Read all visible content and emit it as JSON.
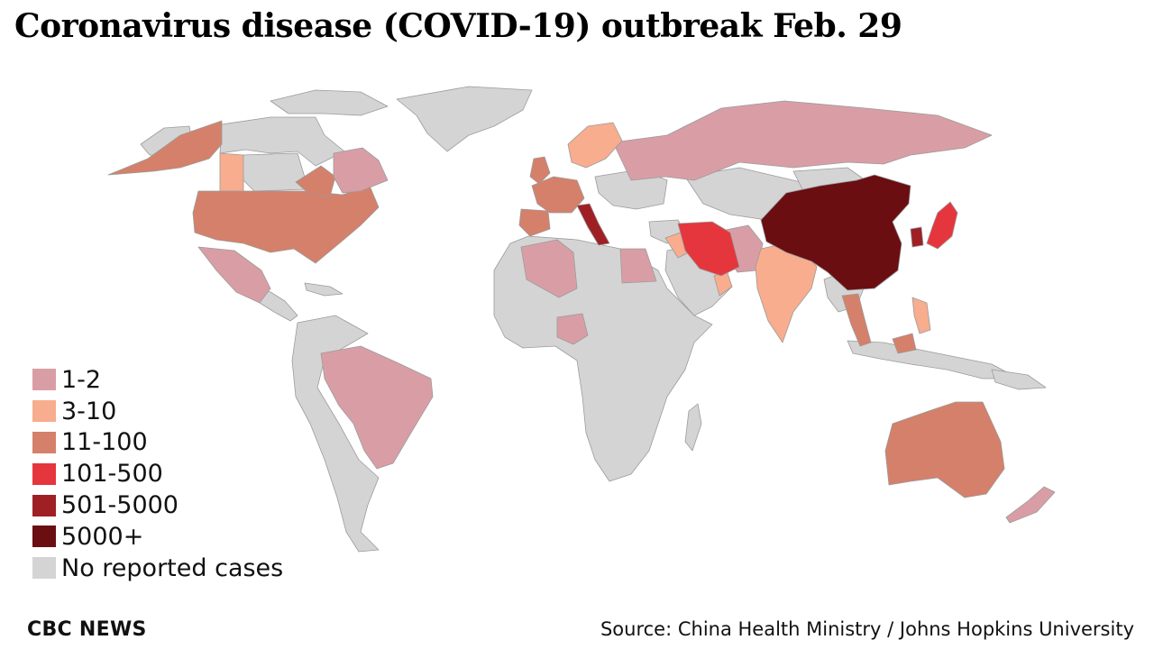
{
  "title": "Coronavirus disease (COVID-19) outbreak Feb. 29",
  "legend": {
    "items": [
      {
        "label": "1-2",
        "color": "#d99ea5"
      },
      {
        "label": "3-10",
        "color": "#f7ad8e"
      },
      {
        "label": "11-100",
        "color": "#d5806a"
      },
      {
        "label": "101-500",
        "color": "#e5363d"
      },
      {
        "label": "501-5000",
        "color": "#9e2025"
      },
      {
        "label": "5000+",
        "color": "#6a0e12"
      },
      {
        "label": "No reported cases",
        "color": "#d4d4d4"
      }
    ]
  },
  "footer": {
    "brand": "CBC NEWS",
    "source": "Source: China Health Ministry / Johns Hopkins University"
  },
  "map": {
    "regions": [
      {
        "name": "China",
        "category": "5000+"
      },
      {
        "name": "South Korea",
        "category": "501-5000"
      },
      {
        "name": "Italy",
        "category": "501-5000"
      },
      {
        "name": "Iran",
        "category": "101-500"
      },
      {
        "name": "Japan",
        "category": "101-500"
      },
      {
        "name": "United States",
        "category": "11-100"
      },
      {
        "name": "Canada (British Columbia)",
        "category": "11-100"
      },
      {
        "name": "Canada (Ontario)",
        "category": "11-100"
      },
      {
        "name": "Germany",
        "category": "11-100"
      },
      {
        "name": "France",
        "category": "11-100"
      },
      {
        "name": "Spain",
        "category": "11-100"
      },
      {
        "name": "United Kingdom",
        "category": "11-100"
      },
      {
        "name": "Australia",
        "category": "11-100"
      },
      {
        "name": "Thailand",
        "category": "11-100"
      },
      {
        "name": "Malaysia",
        "category": "11-100"
      },
      {
        "name": "Singapore",
        "category": "11-100"
      },
      {
        "name": "Canada (Quebec)",
        "category": "1-2"
      },
      {
        "name": "Mexico",
        "category": "1-2"
      },
      {
        "name": "Brazil",
        "category": "1-2"
      },
      {
        "name": "Russia",
        "category": "1-2"
      },
      {
        "name": "Algeria",
        "category": "1-2"
      },
      {
        "name": "Egypt",
        "category": "1-2"
      },
      {
        "name": "Nigeria",
        "category": "1-2"
      },
      {
        "name": "Afghanistan",
        "category": "1-2"
      },
      {
        "name": "Pakistan",
        "category": "1-2"
      },
      {
        "name": "New Zealand",
        "category": "1-2"
      },
      {
        "name": "Canada (Alberta)",
        "category": "3-10"
      },
      {
        "name": "Scandinavia",
        "category": "3-10"
      },
      {
        "name": "India",
        "category": "3-10"
      },
      {
        "name": "Iraq",
        "category": "3-10"
      },
      {
        "name": "Oman",
        "category": "3-10"
      },
      {
        "name": "Philippines",
        "category": "3-10"
      }
    ]
  }
}
